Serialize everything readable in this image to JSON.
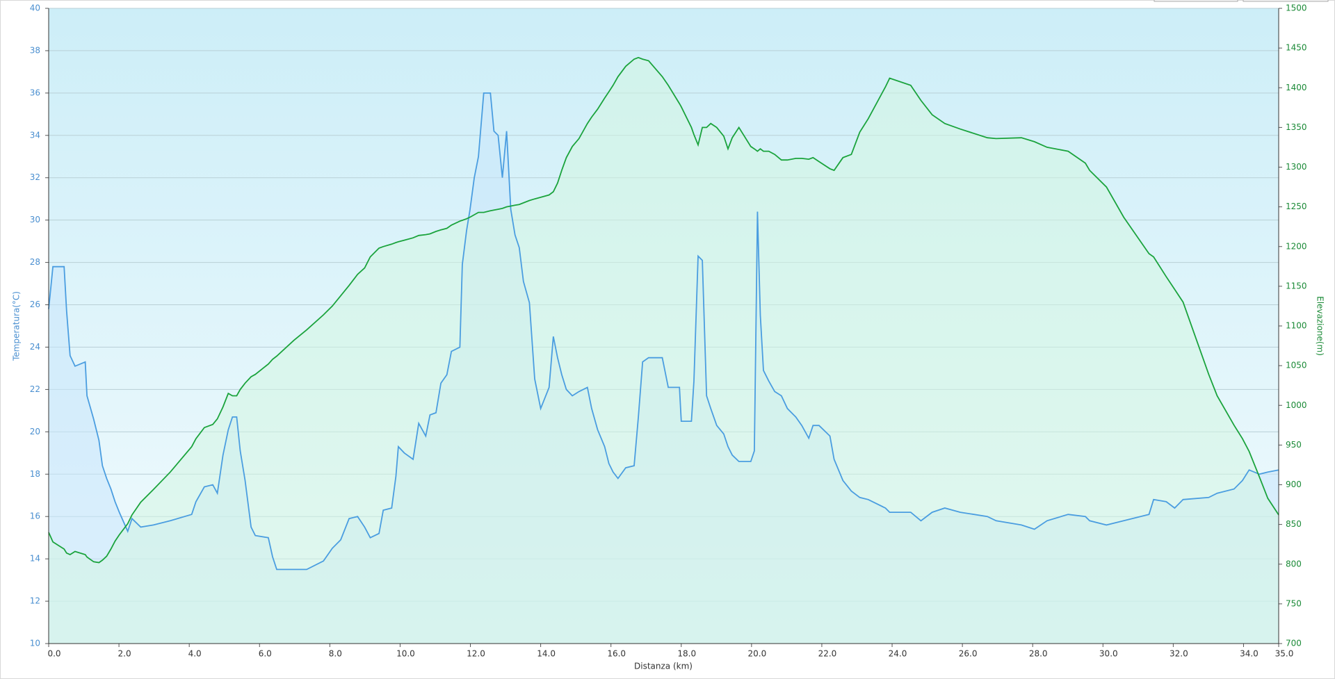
{
  "chart_data": {
    "type": "line",
    "xlabel": "Distanza  (km)",
    "ylabel": "Temperatura(°C)",
    "y2label": "Elevazione(m)",
    "xlim": [
      0,
      35
    ],
    "xticks": [
      {
        "value": 0,
        "label": "0.0"
      },
      {
        "value": 2,
        "label": "2.0"
      },
      {
        "value": 4,
        "label": "4.0"
      },
      {
        "value": 6,
        "label": "6.0"
      },
      {
        "value": 8,
        "label": "8.0"
      },
      {
        "value": 10,
        "label": "10.0"
      },
      {
        "value": 12,
        "label": "12.0"
      },
      {
        "value": 14,
        "label": "14.0"
      },
      {
        "value": 16,
        "label": "16.0"
      },
      {
        "value": 18,
        "label": "18.0"
      },
      {
        "value": 20,
        "label": "20.0"
      },
      {
        "value": 22,
        "label": "22.0"
      },
      {
        "value": 24,
        "label": "24.0"
      },
      {
        "value": 26,
        "label": "26.0"
      },
      {
        "value": 28,
        "label": "28.0"
      },
      {
        "value": 30,
        "label": "30.0"
      },
      {
        "value": 32,
        "label": "32.0"
      },
      {
        "value": 34,
        "label": "34.0"
      },
      {
        "value": 35,
        "label": "35.0"
      }
    ],
    "ylim": [
      10,
      40
    ],
    "yticks": [
      10,
      12,
      14,
      16,
      18,
      20,
      22,
      24,
      26,
      28,
      30,
      32,
      34,
      36,
      38,
      40
    ],
    "y2lim": [
      700,
      1500
    ],
    "y2ticks": [
      700,
      750,
      800,
      850,
      900,
      950,
      1000,
      1050,
      1100,
      1150,
      1200,
      1250,
      1300,
      1350,
      1400,
      1450,
      1500
    ],
    "grid": true,
    "x": [
      0,
      0.12,
      0.44,
      0.51,
      0.61,
      0.75,
      1.04,
      1.09,
      1.28,
      1.43,
      1.53,
      1.65,
      1.77,
      1.89,
      2.01,
      2.25,
      2.37,
      2.62,
      2.98,
      3.46,
      4.07,
      4.19,
      4.43,
      4.67,
      4.8,
      4.96,
      5.11,
      5.23,
      5.35,
      5.45,
      5.59,
      5.76,
      5.88,
      6.25,
      6.37,
      6.49,
      6.98,
      7.34,
      7.82,
      8.07,
      8.31,
      8.55,
      8.79,
      8.99,
      9.15,
      9.4,
      9.52,
      9.76,
      9.88,
      9.95,
      10.12,
      10.37,
      10.53,
      10.73,
      10.85,
      11.02,
      11.16,
      11.33,
      11.46,
      11.7,
      11.77,
      11.89,
      11.99,
      12.11,
      12.23,
      12.38,
      12.57,
      12.67,
      12.79,
      12.91,
      13.03,
      13.15,
      13.27,
      13.39,
      13.51,
      13.68,
      13.83,
      14.0,
      14.24,
      14.36,
      14.48,
      14.6,
      14.73,
      14.9,
      15.09,
      15.33,
      15.45,
      15.62,
      15.82,
      15.94,
      16.06,
      16.2,
      16.42,
      16.66,
      16.78,
      16.9,
      17.07,
      17.46,
      17.63,
      17.95,
      18.0,
      18.29,
      18.36,
      18.48,
      18.6,
      18.72,
      18.84,
      19.01,
      19.21,
      19.33,
      19.45,
      19.64,
      19.98,
      20.08,
      20.17,
      20.25,
      20.34,
      20.49,
      20.66,
      20.85,
      21.02,
      21.26,
      21.43,
      21.63,
      21.75,
      21.92,
      22.23,
      22.35,
      22.6,
      22.84,
      23.08,
      23.32,
      23.81,
      23.93,
      24.53,
      24.82,
      25.14,
      25.5,
      25.94,
      26.71,
      26.96,
      27.68,
      28.05,
      28.41,
      29.01,
      29.5,
      29.62,
      30.1,
      30.59,
      31.31,
      31.44,
      31.8,
      32.04,
      32.28,
      33.01,
      33.25,
      33.73,
      33.97,
      34.16,
      34.45,
      34.69,
      35.0
    ],
    "series": [
      {
        "name": "Temperatura",
        "color": "#4a9de0",
        "fill": "#c9e6fb",
        "values": [
          25.8,
          27.8,
          27.8,
          25.7,
          23.6,
          23.1,
          23.3,
          21.7,
          20.6,
          19.6,
          18.4,
          17.8,
          17.3,
          16.7,
          16.2,
          15.3,
          15.9,
          15.5,
          15.6,
          15.8,
          16.1,
          16.7,
          17.4,
          17.5,
          17.1,
          18.9,
          20.1,
          20.7,
          20.7,
          19.1,
          17.7,
          15.5,
          15.1,
          15.0,
          14.1,
          13.5,
          13.5,
          13.5,
          13.9,
          14.5,
          14.9,
          15.9,
          16.0,
          15.5,
          15.0,
          15.2,
          16.3,
          16.4,
          17.9,
          19.3,
          19.0,
          18.7,
          20.4,
          19.8,
          20.8,
          20.9,
          22.3,
          22.7,
          23.8,
          24.0,
          27.9,
          29.5,
          30.5,
          32.0,
          33.0,
          36.0,
          36.0,
          34.2,
          34.0,
          32.0,
          34.2,
          30.5,
          29.3,
          28.7,
          27.1,
          26.1,
          22.5,
          21.1,
          22.1,
          24.5,
          23.5,
          22.7,
          22.0,
          21.7,
          21.9,
          22.1,
          21.1,
          20.1,
          19.3,
          18.5,
          18.1,
          17.8,
          18.3,
          18.4,
          20.7,
          23.3,
          23.5,
          23.5,
          22.1,
          22.1,
          20.5,
          20.5,
          22.4,
          28.3,
          28.1,
          21.7,
          21.1,
          20.3,
          19.9,
          19.3,
          18.9,
          18.6,
          18.6,
          19.1,
          30.4,
          25.5,
          22.9,
          22.4,
          21.9,
          21.7,
          21.1,
          20.7,
          20.3,
          19.7,
          20.3,
          20.3,
          19.8,
          18.7,
          17.7,
          17.2,
          16.9,
          16.8,
          16.4,
          16.2,
          16.2,
          15.8,
          16.2,
          16.4,
          16.2,
          16.0,
          15.8,
          15.6,
          15.4,
          15.8,
          16.1,
          16.0,
          15.8,
          15.6,
          15.8,
          16.1,
          16.8,
          16.7,
          16.4,
          16.8,
          16.9,
          17.1,
          17.3,
          17.7,
          18.2,
          18.0,
          18.1,
          18.2
        ]
      },
      {
        "name": "Elevazione",
        "color": "#1aa33c",
        "fill": "#d4f5e2",
        "axis": "y2",
        "values": [
          840,
          828,
          819,
          814,
          812,
          816,
          812,
          809,
          803,
          802,
          805,
          810,
          819,
          829,
          837,
          851,
          862,
          878,
          894,
          916,
          948,
          958,
          972,
          976,
          983,
          998,
          1015,
          1012,
          1012,
          1020,
          1028,
          1036,
          1039,
          1052,
          1058,
          1062,
          1082,
          1095,
          1114,
          1125,
          1138,
          1151,
          1165,
          1173,
          1187,
          1198,
          1200,
          1203,
          1205,
          1206,
          1208,
          1211,
          1214,
          1215,
          1216,
          1219,
          1221,
          1223,
          1227,
          1232,
          1233,
          1235,
          1237,
          1240,
          1243,
          1243,
          1245,
          1246,
          1247,
          1248,
          1250,
          1251,
          1252,
          1253,
          1255,
          1258,
          1260,
          1262,
          1265,
          1269,
          1280,
          1296,
          1312,
          1326,
          1336,
          1355,
          1363,
          1373,
          1387,
          1395,
          1403,
          1414,
          1427,
          1436,
          1438,
          1436,
          1434,
          1414,
          1403,
          1380,
          1376,
          1350,
          1341,
          1328,
          1350,
          1350,
          1355,
          1350,
          1339,
          1323,
          1337,
          1350,
          1326,
          1323,
          1320,
          1323,
          1320,
          1320,
          1316,
          1309,
          1309,
          1311,
          1311,
          1310,
          1312,
          1307,
          1298,
          1296,
          1312,
          1316,
          1344,
          1361,
          1401,
          1412,
          1403,
          1384,
          1366,
          1355,
          1348,
          1337,
          1336,
          1337,
          1332,
          1325,
          1320,
          1305,
          1296,
          1275,
          1237,
          1191,
          1187,
          1162,
          1146,
          1130,
          1039,
          1012,
          975,
          958,
          942,
          910,
          883,
          862
        ]
      }
    ]
  }
}
